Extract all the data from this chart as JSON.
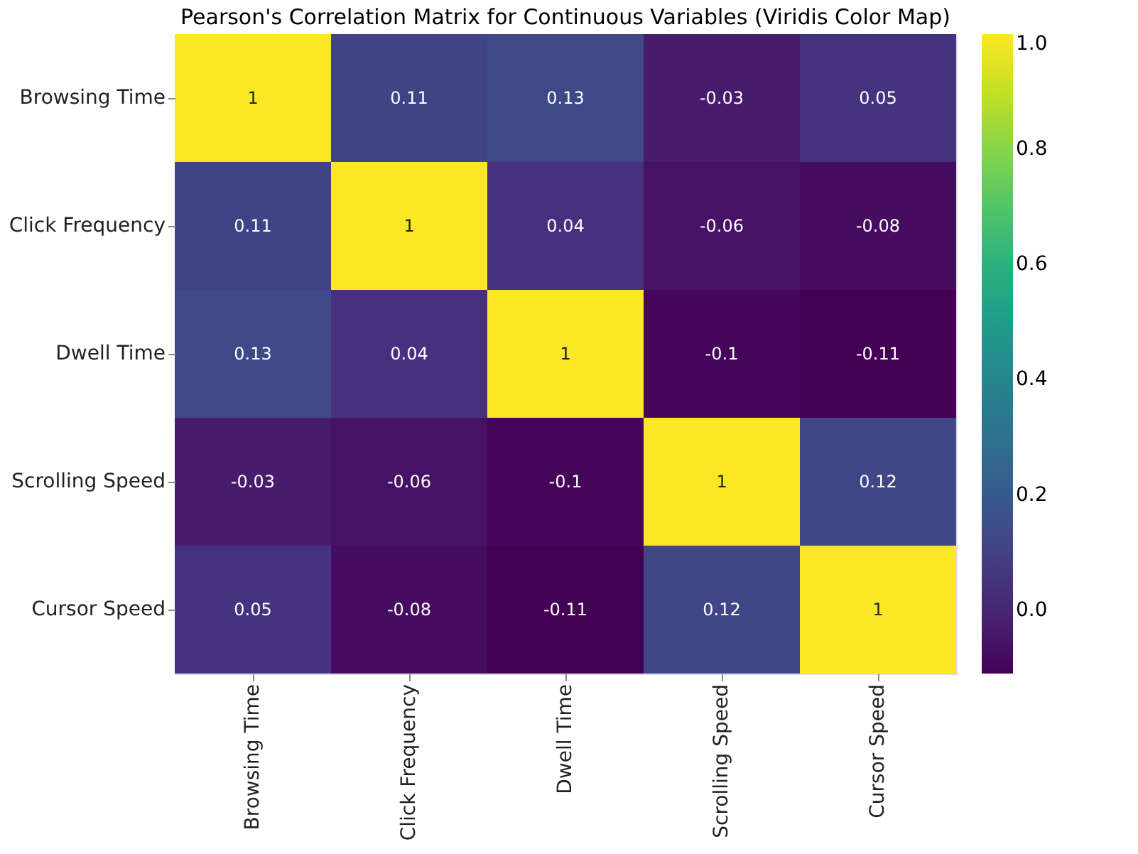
{
  "chart_data": {
    "type": "heatmap",
    "title": "Pearson's Correlation Matrix for Continuous Variables (Viridis Color Map)",
    "categories": [
      "Browsing Time",
      "Click Frequency",
      "Dwell Time",
      "Scrolling Speed",
      "Cursor Speed"
    ],
    "y_categories": [
      "Browsing Time",
      "Click Frequency",
      "Dwell Time",
      "Scrolling Speed",
      "Cursor Speed"
    ],
    "cells": [
      [
        1,
        0.11,
        0.13,
        -0.03,
        0.05
      ],
      [
        0.11,
        1,
        0.04,
        -0.06,
        -0.08
      ],
      [
        0.13,
        0.04,
        1,
        -0.1,
        -0.11
      ],
      [
        -0.03,
        -0.06,
        -0.1,
        1,
        0.12
      ],
      [
        0.05,
        -0.08,
        -0.11,
        0.12,
        1
      ]
    ],
    "clim": [
      -0.11,
      1
    ],
    "cticks": [
      {
        "value": 0,
        "label": "0.0"
      },
      {
        "value": 0.2,
        "label": "0.2"
      },
      {
        "value": 0.4,
        "label": "0.4"
      },
      {
        "value": 0.6,
        "label": "0.6"
      },
      {
        "value": 0.8,
        "label": "0.8"
      },
      {
        "value": 1,
        "label": "1.0"
      }
    ],
    "data_labels": true
  }
}
